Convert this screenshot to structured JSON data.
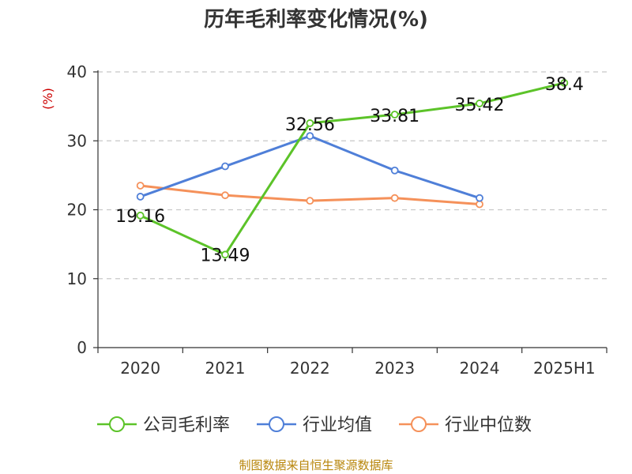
{
  "chart_data": {
    "type": "line",
    "title": "历年毛利率变化情况(%)",
    "ylabel": "(%)",
    "xlabel": "",
    "categories": [
      "2020",
      "2021",
      "2022",
      "2023",
      "2024",
      "2025H1"
    ],
    "ylim": [
      0,
      40
    ],
    "yticks": [
      "0",
      "10",
      "20",
      "30",
      "40"
    ],
    "grid": true,
    "legend_position": "bottom",
    "series": [
      {
        "name": "公司毛利率",
        "color": "#5cc329",
        "values": [
          19.16,
          13.49,
          32.56,
          33.81,
          35.42,
          38.4
        ],
        "labels": [
          "19.16",
          "13.49",
          "32.56",
          "33.81",
          "35.42",
          "38.4"
        ]
      },
      {
        "name": "行业均值",
        "color": "#4f7fd8",
        "values": [
          21.9,
          26.3,
          30.7,
          25.7,
          21.7,
          null
        ]
      },
      {
        "name": "行业中位数",
        "color": "#f5915a",
        "values": [
          23.5,
          22.1,
          21.3,
          21.7,
          20.8,
          null
        ]
      }
    ],
    "source": "制图数据来自恒生聚源数据库"
  }
}
